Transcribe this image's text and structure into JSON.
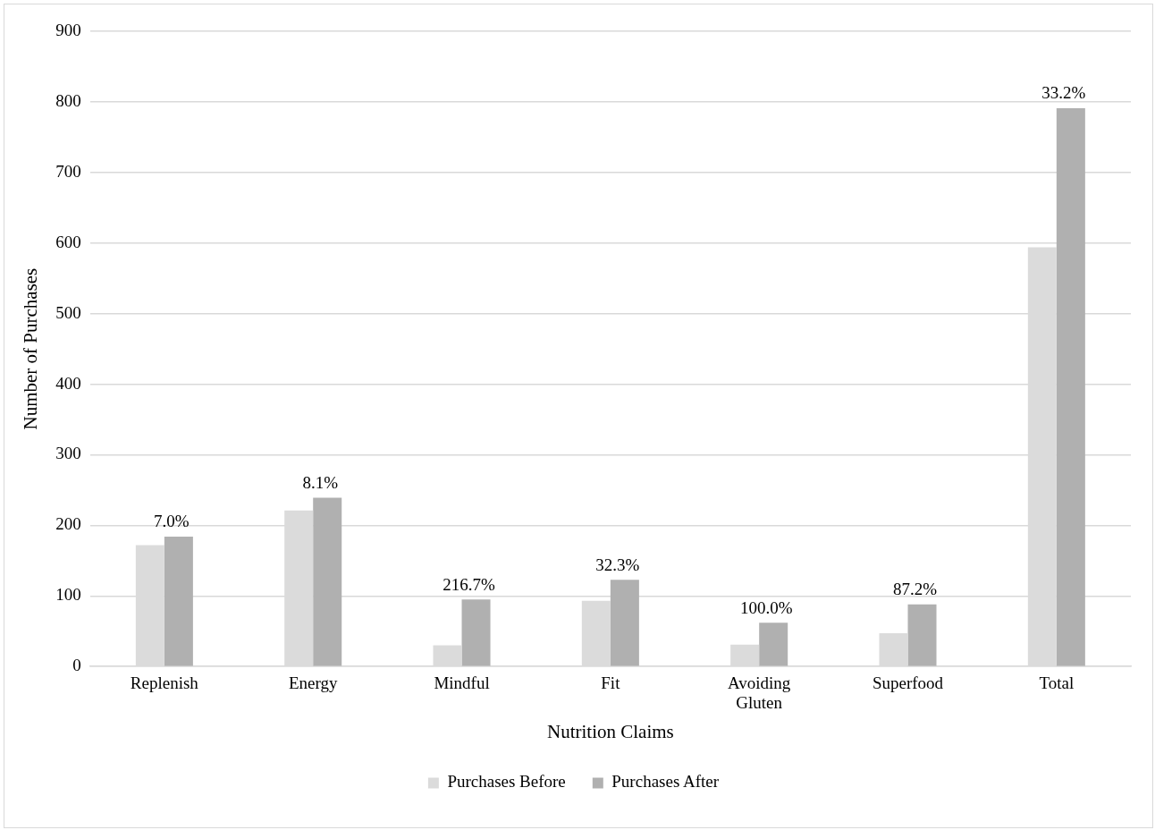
{
  "chart_data": {
    "type": "bar",
    "xlabel": "Nutrition Claims",
    "ylabel": "Number of Purchases",
    "categories": [
      "Replenish",
      "Energy",
      "Mindful",
      "Fit",
      "Avoiding Gluten",
      "Superfood",
      "Total"
    ],
    "series": [
      {
        "name": "Purchases Before",
        "color": "#dbdbdb",
        "values": [
          172,
          221,
          30,
          93,
          31,
          47,
          594
        ]
      },
      {
        "name": "Purchases After",
        "color": "#b0b0b0",
        "values": [
          184,
          239,
          95,
          123,
          62,
          88,
          791
        ]
      }
    ],
    "annotations": [
      {
        "text": "7.0%",
        "x": "Replenish",
        "y": 184
      },
      {
        "text": "8.1%",
        "x": "Energy",
        "y": 239
      },
      {
        "text": "216.7%",
        "x": "Mindful",
        "y": 95
      },
      {
        "text": "32.3%",
        "x": "Fit",
        "y": 123
      },
      {
        "text": "100.0%",
        "x": "Avoiding Gluten",
        "y": 62
      },
      {
        "text": "87.2%",
        "x": "Superfood",
        "y": 88
      },
      {
        "text": "33.2%",
        "x": "Total",
        "y": 791
      }
    ],
    "ylim": [
      0,
      900
    ],
    "yticks": [
      0,
      100,
      200,
      300,
      400,
      500,
      600,
      700,
      800,
      900
    ],
    "grid": "y",
    "legend": "bottom"
  }
}
